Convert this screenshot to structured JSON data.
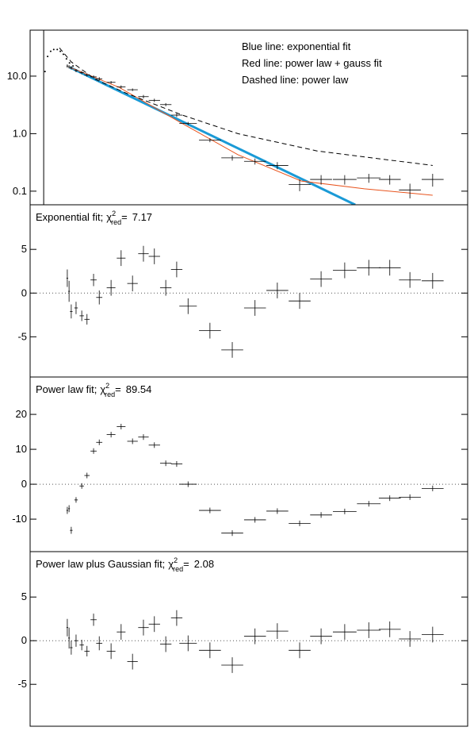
{
  "chart_data": [
    {
      "type": "errorbar",
      "log_y": true,
      "annotations": [
        "Blue line: exponential fit",
        "Red line: power law + gauss fit",
        "Dashed line: power law"
      ],
      "xlim": [
        0,
        100
      ],
      "ylim": [
        0.058,
        63
      ],
      "yticks": [
        {
          "value": 10,
          "label": "10.0"
        },
        {
          "value": 1,
          "label": "1.0"
        },
        0.1
      ],
      "marker_x": 3.1,
      "peak": {
        "x": [
          3.4,
          4.0,
          4.7,
          5.4,
          6.2,
          6.9,
          7.6,
          8.3,
          9.0,
          9.8
        ],
        "values": [
          12,
          22,
          27,
          29,
          29,
          27,
          24,
          20,
          17,
          15
        ]
      },
      "lines": [
        {
          "color": "#1a9ad6",
          "width": 3,
          "dash": false,
          "x": [
            9.1,
            74.3
          ],
          "values": [
            14.2,
            0.058
          ]
        },
        {
          "color": "#e8541e",
          "width": 1,
          "dash": false,
          "x": [
            9.1,
            20.3,
            34.8,
            47.5,
            62.0,
            76.4,
            92.0
          ],
          "values": [
            14.2,
            6.4,
            1.5,
            0.43,
            0.15,
            0.11,
            0.085
          ]
        },
        {
          "color": "#000000",
          "width": 1,
          "dash": true,
          "x": [
            6.7,
            9.4,
            14.9,
            22.1,
            34.8,
            47.5,
            65.6,
            92.0
          ],
          "values": [
            31,
            17.7,
            8.8,
            5.0,
            2.1,
            1.0,
            0.5,
            0.28
          ]
        }
      ],
      "x": [
        8.5,
        8.9,
        9.4,
        10.5,
        11.8,
        13.0,
        14.5,
        15.8,
        18.5,
        20.8,
        23.4,
        25.9,
        28.4,
        31.0,
        33.5,
        36.1,
        41.1,
        46.2,
        51.4,
        56.5,
        61.6,
        66.5,
        71.9,
        77.4,
        82.2,
        86.8,
        92.0
      ],
      "xerr": [
        0.2,
        0.2,
        0.3,
        0.4,
        0.5,
        0.6,
        0.7,
        0.7,
        1,
        1,
        1.2,
        1.2,
        1.3,
        1.3,
        1.3,
        2,
        2.5,
        2.5,
        2.5,
        2.5,
        2.5,
        2.5,
        2.7,
        2.7,
        2.5,
        2.5,
        2.5
      ],
      "values": [
        15,
        14.5,
        14,
        12.5,
        11.5,
        10.5,
        9.7,
        9,
        7.8,
        6.5,
        5.8,
        4.4,
        3.8,
        3.2,
        2.1,
        1.5,
        0.77,
        0.38,
        0.33,
        0.28,
        0.13,
        0.16,
        0.16,
        0.17,
        0.16,
        0.105,
        0.16
      ],
      "yerr": [
        1,
        1,
        1,
        0.8,
        0.7,
        0.7,
        0.6,
        0.6,
        0.4,
        0.4,
        0.3,
        0.3,
        0.25,
        0.2,
        0.15,
        0.1,
        0.06,
        0.04,
        0.04,
        0.04,
        0.03,
        0.03,
        0.03,
        0.03,
        0.03,
        0.03,
        0.04
      ]
    },
    {
      "type": "errorbar",
      "log_y": false,
      "title": "Exponential fit;",
      "chi_symbol": "χ",
      "chi_sup": "2",
      "chi_sub": "red",
      "chi_equals": "=",
      "chi_value": 7.17,
      "xlim": [
        0,
        100
      ],
      "ylim": [
        -9.6,
        10.1
      ],
      "yticks": [
        5,
        0,
        -5
      ],
      "x": [
        8.5,
        8.9,
        9.4,
        10.5,
        11.8,
        13.0,
        14.5,
        15.8,
        18.5,
        20.8,
        23.4,
        25.9,
        28.4,
        31.0,
        33.5,
        36.1,
        41.1,
        46.2,
        51.4,
        56.5,
        61.6,
        66.5,
        71.9,
        77.4,
        82.2,
        86.8,
        92.0
      ],
      "xerr": [
        0.2,
        0.2,
        0.3,
        0.4,
        0.5,
        0.6,
        0.7,
        0.7,
        1,
        1,
        1.2,
        1.2,
        1.3,
        1.3,
        1.3,
        2,
        2.5,
        2.5,
        2.5,
        2.5,
        2.5,
        2.5,
        2.7,
        2.7,
        2.5,
        2.5,
        2.5
      ],
      "values": [
        1.7,
        0.2,
        -2.1,
        -1.7,
        -2.6,
        -3.0,
        1.5,
        -0.5,
        0.6,
        4.0,
        1.1,
        4.5,
        4.2,
        0.6,
        2.7,
        -1.5,
        -4.3,
        -6.5,
        -1.7,
        0.3,
        -0.9,
        1.6,
        2.6,
        2.9,
        2.9,
        1.5,
        1.4
      ],
      "yerr": [
        1,
        1.2,
        0.8,
        0.7,
        0.6,
        0.6,
        0.7,
        0.8,
        0.9,
        0.9,
        0.9,
        0.9,
        0.9,
        0.9,
        0.9,
        0.9,
        0.9,
        0.9,
        0.9,
        0.9,
        0.9,
        0.9,
        0.9,
        0.9,
        0.9,
        0.9,
        0.9
      ]
    },
    {
      "type": "errorbar",
      "log_y": false,
      "title": "Power law fit;",
      "chi_symbol": "χ",
      "chi_sup": "2",
      "chi_sub": "red",
      "chi_equals": "=",
      "chi_value": 89.54,
      "xlim": [
        0,
        100
      ],
      "ylim": [
        -19.3,
        30.7
      ],
      "yticks": [
        20,
        10,
        0,
        -10
      ],
      "x": [
        8.5,
        8.9,
        9.4,
        10.5,
        11.8,
        13.0,
        14.5,
        15.8,
        18.5,
        20.8,
        23.4,
        25.9,
        28.4,
        31.0,
        33.5,
        36.1,
        41.1,
        46.2,
        51.4,
        56.5,
        61.6,
        66.5,
        71.9,
        77.4,
        82.2,
        86.8,
        92.0
      ],
      "xerr": [
        0.2,
        0.2,
        0.3,
        0.4,
        0.5,
        0.6,
        0.7,
        0.7,
        1,
        1,
        1.2,
        1.2,
        1.3,
        1.3,
        1.3,
        2,
        2.5,
        2.5,
        2.5,
        2.5,
        2.5,
        2.5,
        2.7,
        2.7,
        2.5,
        2.5,
        2.5
      ],
      "values": [
        -7.5,
        -7,
        -13.2,
        -4.5,
        -0.5,
        2.5,
        9.5,
        12,
        14.2,
        16.5,
        12.3,
        13.5,
        11.2,
        6,
        5.8,
        0,
        -7.5,
        -14,
        -10.2,
        -7.7,
        -11.2,
        -8.8,
        -7.8,
        -5.6,
        -4,
        -3.7,
        -1.2
      ],
      "yerr": [
        1,
        1,
        1,
        0.8,
        0.8,
        0.8,
        0.8,
        0.8,
        0.8,
        0.8,
        0.8,
        0.8,
        0.8,
        0.8,
        0.8,
        0.8,
        0.8,
        0.8,
        0.8,
        0.8,
        0.8,
        0.8,
        0.8,
        0.8,
        0.8,
        0.8,
        0.8
      ]
    },
    {
      "type": "errorbar",
      "log_y": false,
      "title": "Power law plus Gaussian fit;",
      "chi_symbol": "χ",
      "chi_sup": "2",
      "chi_sub": "red",
      "chi_equals": "=",
      "chi_value": 2.08,
      "xlim": [
        0,
        100
      ],
      "ylim": [
        -9.8,
        10.2
      ],
      "yticks": [
        5,
        0,
        -5
      ],
      "x": [
        8.5,
        8.9,
        9.4,
        10.5,
        11.8,
        13.0,
        14.5,
        15.8,
        18.5,
        20.8,
        23.4,
        25.9,
        28.4,
        31.0,
        33.5,
        36.1,
        41.1,
        46.2,
        51.4,
        56.5,
        61.6,
        66.5,
        71.9,
        77.4,
        82.2,
        86.8,
        92.0
      ],
      "xerr": [
        0.2,
        0.2,
        0.3,
        0.4,
        0.5,
        0.6,
        0.7,
        0.7,
        1,
        1,
        1.2,
        1.2,
        1.3,
        1.3,
        1.3,
        2,
        2.5,
        2.5,
        2.5,
        2.5,
        2.5,
        2.5,
        2.7,
        2.7,
        2.5,
        2.5,
        2.5
      ],
      "values": [
        1.5,
        0.3,
        -0.8,
        0,
        -0.5,
        -1.2,
        2.4,
        -0.3,
        -1.2,
        1.0,
        -2.4,
        1.5,
        1.9,
        -0.4,
        2.6,
        -0.3,
        -1.1,
        -2.8,
        0.5,
        1.1,
        -1.1,
        0.5,
        1,
        1.2,
        1.3,
        0.2,
        0.7
      ],
      "yerr": [
        1,
        1.2,
        0.8,
        0.7,
        0.6,
        0.6,
        0.7,
        0.8,
        0.9,
        0.9,
        0.9,
        0.9,
        0.9,
        0.9,
        0.9,
        0.9,
        0.9,
        0.9,
        0.9,
        0.9,
        0.9,
        0.9,
        0.9,
        0.9,
        0.9,
        0.9,
        0.9
      ]
    }
  ]
}
